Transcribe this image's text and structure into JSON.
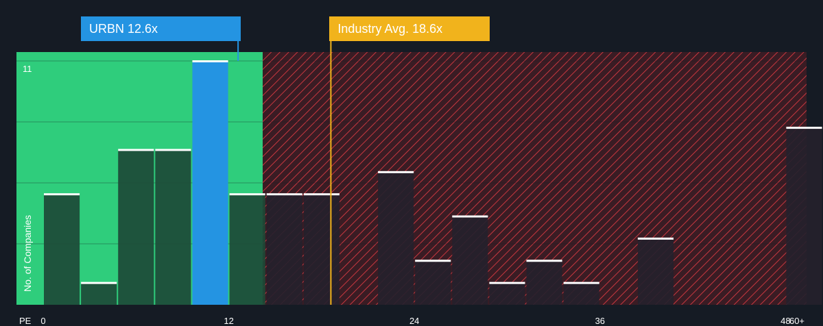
{
  "chart_data": {
    "type": "bar",
    "x_axis_label": "PE",
    "y_axis_label": "No. of Companies",
    "x_ticks": [
      "0",
      "12",
      "24",
      "36",
      "48",
      "60+"
    ],
    "x_tick_values": [
      0,
      12,
      24,
      36,
      48,
      60
    ],
    "y_max_label": "11",
    "ylim": [
      0,
      11
    ],
    "bin_width": 2.4,
    "bins": [
      {
        "start": 0.0,
        "value": 5
      },
      {
        "start": 2.4,
        "value": 1
      },
      {
        "start": 4.8,
        "value": 7
      },
      {
        "start": 7.2,
        "value": 7
      },
      {
        "start": 9.6,
        "value": 11,
        "highlight": true
      },
      {
        "start": 12.0,
        "value": 5
      },
      {
        "start": 14.4,
        "value": 5
      },
      {
        "start": 16.8,
        "value": 5
      },
      {
        "start": 19.2,
        "value": 0
      },
      {
        "start": 21.6,
        "value": 6
      },
      {
        "start": 24.0,
        "value": 2
      },
      {
        "start": 26.4,
        "value": 4
      },
      {
        "start": 28.8,
        "value": 1
      },
      {
        "start": 31.2,
        "value": 2
      },
      {
        "start": 33.6,
        "value": 1
      },
      {
        "start": 36.0,
        "value": 0
      },
      {
        "start": 38.4,
        "value": 3
      },
      {
        "start": 40.8,
        "value": 0
      },
      {
        "start": 43.2,
        "value": 0
      },
      {
        "start": 45.6,
        "value": 0
      },
      {
        "start": 48.0,
        "value": 8
      }
    ],
    "subject": {
      "label": "URBN 12.6x",
      "value": 12.6,
      "color": "#2494e2"
    },
    "industry_avg": {
      "label": "Industry Avg. 18.6x",
      "value": 18.6,
      "color": "#f1b31c"
    },
    "colors": {
      "background": "#151b24",
      "undervalued_zone": "#2fcd7c",
      "overvalued_zone": "#3a1c24",
      "hatch": "#c8373f",
      "bar": "#1d4a37",
      "bar_in_red_zone": "#25212d",
      "bar_top": "#ffffff"
    },
    "grid": true
  }
}
